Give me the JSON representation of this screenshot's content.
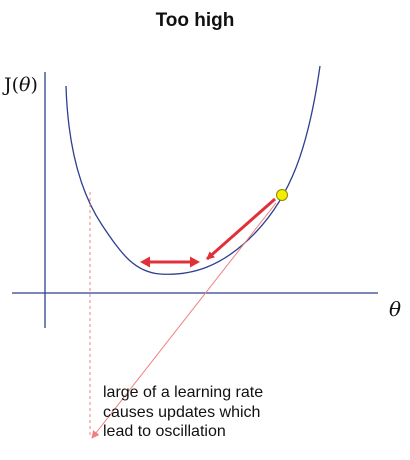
{
  "title": "Too high",
  "y_axis_label": {
    "prefix": "J(",
    "symbol": "θ",
    "suffix": ")"
  },
  "x_axis_label": "θ",
  "caption_lines": [
    "large of a learning rate",
    "causes updates which",
    "lead to oscillation"
  ],
  "colors": {
    "axis": "#2e3f8f",
    "curve": "#2e3f8f",
    "arrow": "#e0303a",
    "dashed_line": "#f08080",
    "point_fill": "#f5ec00",
    "point_stroke": "#8a8a00"
  }
}
